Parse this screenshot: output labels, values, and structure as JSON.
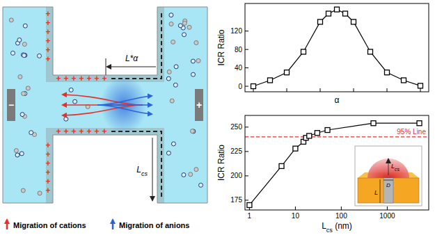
{
  "diagram": {
    "electrodes": {
      "left": "−",
      "right": "+"
    },
    "surface_charge": "+",
    "length_label": "L*α",
    "cap_label": [
      {
        "text": "L"
      },
      {
        "text": "cs",
        "sub": true
      }
    ],
    "legend": [
      {
        "label": "Migration of cations",
        "color": "#e8302a"
      },
      {
        "label": "Migration of anions",
        "color": "#2a64d8"
      }
    ]
  },
  "chart_data": [
    {
      "type": "line",
      "x": [
        0,
        0.1,
        0.2,
        0.3,
        0.4,
        0.45,
        0.5,
        0.55,
        0.6,
        0.7,
        0.8,
        0.9,
        1.0
      ],
      "values": [
        0,
        13,
        30,
        75,
        140,
        158,
        167,
        158,
        140,
        75,
        30,
        13,
        1
      ],
      "x_label": "α",
      "y_label": "ICR Ratio",
      "xlim": [
        -0.05,
        1.05
      ],
      "ylim": [
        -12,
        180
      ],
      "xticks": [
        0,
        0.2,
        0.4,
        0.6,
        0.8,
        1
      ],
      "yticks": [
        0,
        40,
        80,
        120
      ],
      "tick_labels": "y",
      "marker": "square",
      "color": "#000000"
    },
    {
      "type": "line",
      "log": "x",
      "x": [
        1,
        5,
        10,
        15,
        17,
        20,
        30,
        50,
        500,
        5000
      ],
      "values": [
        170,
        210,
        228,
        235,
        239,
        241,
        244,
        247,
        254,
        254
      ],
      "x_label": [
        {
          "text": "L"
        },
        {
          "text": "cs",
          "sub": true
        },
        {
          "text": " (nm)"
        }
      ],
      "y_label": "ICR Ratio",
      "xlim": [
        0.8,
        8000
      ],
      "ylim": [
        165,
        262
      ],
      "xticks": [
        1,
        10,
        100,
        1000
      ],
      "yticks": [
        175,
        200,
        225,
        250
      ],
      "marker": "square",
      "color": "#000000",
      "reference_line": {
        "value": 240,
        "label": "95% Line",
        "color": "#e03030"
      },
      "inset": {
        "cap_label": [
          {
            "text": "L"
          },
          {
            "text": "cs",
            "sub": true
          }
        ],
        "diameter_label": "D",
        "length_label": "L"
      }
    }
  ]
}
